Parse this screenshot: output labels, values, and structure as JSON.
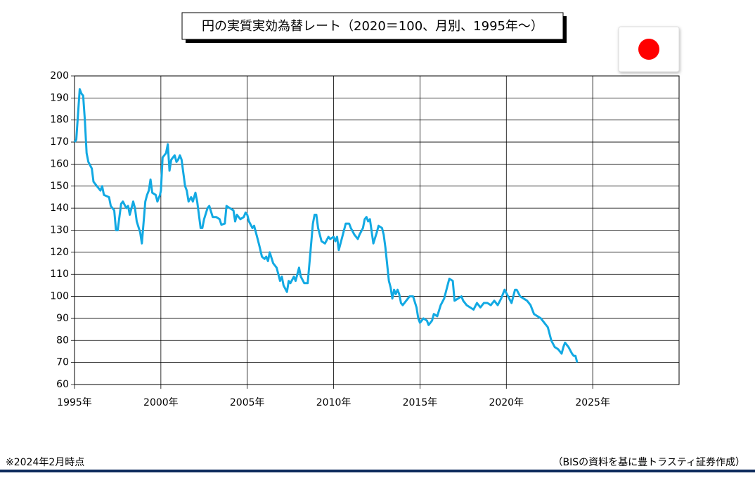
{
  "chart_data": {
    "type": "line",
    "title": "円の実質実効為替レート（2020＝100、月別、1995年～）",
    "note": "※2024年2月時点",
    "source": "（BISの資料を基に豊トラスティ証券作成）",
    "x": [
      1995.0,
      1995.1,
      1995.3,
      1995.4,
      1995.5,
      1995.6,
      1995.7,
      1995.8,
      1996.0,
      1996.1,
      1996.3,
      1996.5,
      1996.6,
      1996.7,
      1997.0,
      1997.1,
      1997.3,
      1997.4,
      1997.5,
      1997.7,
      1997.8,
      1998.0,
      1998.1,
      1998.2,
      1998.4,
      1998.5,
      1998.6,
      1998.8,
      1998.9,
      1999.1,
      1999.2,
      1999.3,
      1999.4,
      1999.5,
      1999.7,
      1999.8,
      1999.95,
      2000.0,
      2000.1,
      2000.3,
      2000.4,
      2000.5,
      2000.6,
      2000.8,
      2000.9,
      2001.0,
      2001.1,
      2001.2,
      2001.4,
      2001.5,
      2001.6,
      2001.75,
      2001.85,
      2002.0,
      2002.1,
      2002.3,
      2002.4,
      2002.5,
      2002.7,
      2002.8,
      2003.0,
      2003.2,
      2003.4,
      2003.5,
      2003.7,
      2003.8,
      2004.0,
      2004.2,
      2004.3,
      2004.4,
      2004.6,
      2004.8,
      2004.9,
      2005.0,
      2005.1,
      2005.3,
      2005.4,
      2005.6,
      2005.7,
      2005.85,
      2006.0,
      2006.1,
      2006.2,
      2006.3,
      2006.5,
      2006.7,
      2006.9,
      2007.0,
      2007.1,
      2007.3,
      2007.4,
      2007.5,
      2007.7,
      2007.8,
      2008.0,
      2008.1,
      2008.3,
      2008.5,
      2008.6,
      2008.8,
      2008.9,
      2009.0,
      2009.1,
      2009.3,
      2009.5,
      2009.7,
      2009.8,
      2010.0,
      2010.1,
      2010.2,
      2010.3,
      2010.5,
      2010.7,
      2010.9,
      2011.0,
      2011.2,
      2011.4,
      2011.5,
      2011.7,
      2011.8,
      2011.9,
      2012.0,
      2012.1,
      2012.3,
      2012.5,
      2012.6,
      2012.8,
      2012.9,
      2013.0,
      2013.2,
      2013.3,
      2013.4,
      2013.5,
      2013.6,
      2013.7,
      2013.8,
      2013.9,
      2014.0,
      2014.2,
      2014.4,
      2014.6,
      2014.8,
      2014.9,
      2015.0,
      2015.2,
      2015.4,
      2015.5,
      2015.7,
      2015.8,
      2016.0,
      2016.2,
      2016.4,
      2016.6,
      2016.7,
      2016.9,
      2017.0,
      2017.2,
      2017.4,
      2017.5,
      2017.7,
      2017.9,
      2018.1,
      2018.3,
      2018.5,
      2018.7,
      2018.9,
      2019.1,
      2019.3,
      2019.5,
      2019.7,
      2019.9,
      2020.1,
      2020.3,
      2020.5,
      2020.6,
      2020.8,
      2021.0,
      2021.2,
      2021.4,
      2021.6,
      2021.8,
      2022.0,
      2022.2,
      2022.4,
      2022.6,
      2022.8,
      2023.0,
      2023.2,
      2023.3,
      2023.4,
      2023.6,
      2023.8,
      2023.9,
      2024.0,
      2024.1
    ],
    "series": [
      {
        "name": "円の実質実効為替レート",
        "color": "#12a9e3",
        "values": [
          170,
          171,
          194,
          192,
          191,
          180,
          165,
          161,
          158,
          152,
          150,
          148,
          150,
          146,
          145,
          141,
          139,
          130,
          130,
          142,
          143,
          140,
          141,
          137,
          143,
          140,
          134,
          129,
          124,
          143,
          146,
          148,
          153,
          147,
          146,
          143,
          146,
          148,
          163,
          165,
          169,
          157,
          162,
          164,
          161,
          162,
          164,
          162,
          150,
          148,
          143,
          145,
          143,
          147,
          143,
          131,
          131,
          135,
          140,
          141,
          136,
          136,
          135,
          132.5,
          133,
          141,
          140,
          139,
          134,
          137,
          135,
          136,
          138,
          137,
          134,
          131,
          132,
          126,
          123,
          118,
          117,
          118,
          116,
          120,
          115,
          113,
          107,
          109,
          105,
          102,
          107,
          106,
          109,
          107,
          113,
          109,
          106,
          106,
          115,
          133,
          137,
          137,
          131,
          125,
          124,
          127,
          126,
          127,
          125,
          127,
          121,
          127,
          133,
          133,
          131,
          128,
          126,
          128,
          131,
          135,
          136,
          134,
          135,
          124,
          129,
          132,
          131,
          128,
          122,
          107,
          104,
          99,
          103,
          101,
          103,
          101,
          97,
          96,
          98,
          100,
          100,
          95,
          90,
          88,
          90,
          89,
          87,
          89,
          92,
          91,
          96,
          99,
          105,
          108,
          107,
          98,
          99,
          100,
          98,
          96,
          95,
          94,
          97,
          95,
          97,
          97,
          96,
          98,
          96,
          99,
          103,
          100,
          97,
          103,
          103,
          100,
          99,
          98,
          96,
          92,
          91,
          90,
          88,
          86,
          80,
          77,
          76,
          74,
          77,
          79,
          77,
          74,
          73,
          73,
          70
        ]
      }
    ],
    "xlim": [
      1995,
      2030
    ],
    "xticks": [
      {
        "value": 1995,
        "label": "1995年"
      },
      {
        "value": 2000,
        "label": "2000年"
      },
      {
        "value": 2005,
        "label": "2005年"
      },
      {
        "value": 2010,
        "label": "2010年"
      },
      {
        "value": 2015,
        "label": "2015年"
      },
      {
        "value": 2020,
        "label": "2020年"
      },
      {
        "value": 2025,
        "label": "2025年"
      }
    ],
    "ylim": [
      60,
      200
    ],
    "yticks": [
      60,
      70,
      80,
      90,
      100,
      110,
      120,
      130,
      140,
      150,
      160,
      170,
      180,
      190,
      200
    ],
    "grid": true
  }
}
